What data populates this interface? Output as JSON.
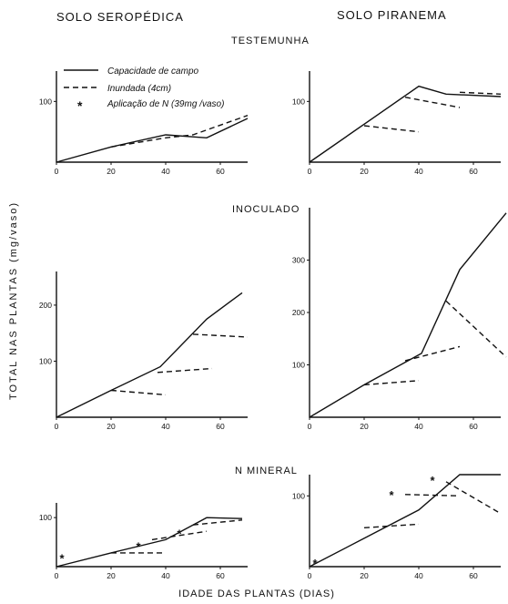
{
  "header": {
    "left": "SOLO SEROPÉDICA",
    "right": "SOLO PIRANEMA"
  },
  "y_axis_label": "TOTAL NAS PLANTAS (mg/vaso)",
  "x_axis_label": "IDADE DAS PLANTAS (DIAS)",
  "legend": {
    "solid": "Capacidade de campo",
    "dashed": "Inundada (4cm)",
    "star": "Aplicação de N (39mg /vaso)",
    "star_symbol": "*"
  },
  "sections": [
    "TESTEMUNHA",
    "INOCULADO",
    "N MINERAL"
  ],
  "colors": {
    "ink": "#111111",
    "background": "#ffffff"
  },
  "chart_data": [
    {
      "type": "line",
      "soil": "SOLO SEROPÉDICA",
      "treatment": "TESTEMUNHA",
      "xlim": [
        0,
        70
      ],
      "ylim": [
        0,
        150
      ],
      "xticks": [
        0,
        20,
        40,
        60
      ],
      "yticks": [
        100
      ],
      "series": [
        {
          "name": "Capacidade de campo",
          "style": "solid",
          "points": [
            [
              0,
              0
            ],
            [
              20,
              25
            ],
            [
              40,
              45
            ],
            [
              55,
              40
            ],
            [
              70,
              72
            ]
          ]
        },
        {
          "name": "Inundada (4cm)",
          "style": "dashed",
          "points": [
            [
              20,
              25
            ],
            [
              40,
              40
            ],
            [
              50,
              45
            ],
            [
              70,
              77
            ]
          ]
        }
      ],
      "markers": []
    },
    {
      "type": "line",
      "soil": "SOLO PIRANEMA",
      "treatment": "TESTEMUNHA",
      "xlim": [
        0,
        70
      ],
      "ylim": [
        0,
        150
      ],
      "xticks": [
        0,
        20,
        40,
        60
      ],
      "yticks": [
        100
      ],
      "series": [
        {
          "name": "Capacidade de campo",
          "style": "solid",
          "points": [
            [
              0,
              0
            ],
            [
              40,
              125
            ],
            [
              50,
              112
            ],
            [
              70,
              108
            ]
          ]
        },
        {
          "name": "Inundada (4cm)",
          "style": "dashed",
          "points": [
            [
              20,
              60
            ],
            [
              40,
              50
            ]
          ]
        },
        {
          "name": "Inundada (4cm)",
          "style": "dashed",
          "points": [
            [
              35,
              107
            ],
            [
              55,
              90
            ]
          ]
        },
        {
          "name": "Inundada (4cm)",
          "style": "dashed",
          "points": [
            [
              55,
              115
            ],
            [
              70,
              112
            ]
          ]
        }
      ],
      "markers": []
    },
    {
      "type": "line",
      "soil": "SOLO SEROPÉDICA",
      "treatment": "INOCULADO",
      "xlim": [
        0,
        70
      ],
      "ylim": [
        0,
        260
      ],
      "xticks": [
        0,
        20,
        40,
        60
      ],
      "yticks": [
        100,
        200
      ],
      "series": [
        {
          "name": "Capacidade de campo",
          "style": "solid",
          "points": [
            [
              0,
              0
            ],
            [
              20,
              48
            ],
            [
              38,
              90
            ],
            [
              55,
              175
            ],
            [
              68,
              222
            ]
          ]
        },
        {
          "name": "Inundada (4cm)",
          "style": "dashed",
          "points": [
            [
              20,
              48
            ],
            [
              40,
              40
            ]
          ]
        },
        {
          "name": "Inundada (4cm)",
          "style": "dashed",
          "points": [
            [
              37,
              80
            ],
            [
              57,
              87
            ]
          ]
        },
        {
          "name": "Inundada (4cm)",
          "style": "dashed",
          "points": [
            [
              50,
              148
            ],
            [
              70,
              143
            ]
          ]
        }
      ],
      "markers": []
    },
    {
      "type": "line",
      "soil": "SOLO PIRANEMA",
      "treatment": "INOCULADO",
      "xlim": [
        0,
        70
      ],
      "ylim": [
        0,
        400
      ],
      "xticks": [
        0,
        20,
        40,
        60
      ],
      "yticks": [
        100,
        200,
        300
      ],
      "series": [
        {
          "name": "Capacidade de campo",
          "style": "solid",
          "points": [
            [
              0,
              0
            ],
            [
              20,
              62
            ],
            [
              41,
              122
            ],
            [
              55,
              282
            ],
            [
              72,
              390
            ]
          ]
        },
        {
          "name": "Inundada (4cm)",
          "style": "dashed",
          "points": [
            [
              20,
              62
            ],
            [
              40,
              70
            ]
          ]
        },
        {
          "name": "Inundada (4cm)",
          "style": "dashed",
          "points": [
            [
              35,
              108
            ],
            [
              55,
              135
            ]
          ]
        },
        {
          "name": "Inundada (4cm)",
          "style": "dashed",
          "points": [
            [
              50,
              222
            ],
            [
              72,
              115
            ]
          ]
        }
      ],
      "markers": []
    },
    {
      "type": "line",
      "soil": "SOLO SEROPÉDICA",
      "treatment": "N MINERAL",
      "xlim": [
        0,
        70
      ],
      "ylim": [
        0,
        130
      ],
      "xticks": [
        0,
        20,
        40,
        60
      ],
      "yticks": [
        100
      ],
      "series": [
        {
          "name": "Capacidade de campo",
          "style": "solid",
          "points": [
            [
              0,
              0
            ],
            [
              20,
              28
            ],
            [
              40,
              55
            ],
            [
              55,
              100
            ],
            [
              68,
              98
            ]
          ]
        },
        {
          "name": "Inundada (4cm)",
          "style": "dashed",
          "points": [
            [
              20,
              28
            ],
            [
              40,
              28
            ]
          ]
        },
        {
          "name": "Inundada (4cm)",
          "style": "dashed",
          "points": [
            [
              35,
              55
            ],
            [
              55,
              72
            ]
          ]
        },
        {
          "name": "Inundada (4cm)",
          "style": "dashed",
          "points": [
            [
              50,
              85
            ],
            [
              68,
              95
            ]
          ]
        }
      ],
      "markers": [
        [
          2,
          18
        ],
        [
          30,
          42
        ],
        [
          45,
          68
        ]
      ]
    },
    {
      "type": "line",
      "soil": "SOLO PIRANEMA",
      "treatment": "N MINERAL",
      "xlim": [
        0,
        70
      ],
      "ylim": [
        0,
        130
      ],
      "xticks": [
        0,
        20,
        40,
        60
      ],
      "yticks": [
        100
      ],
      "series": [
        {
          "name": "Capacidade de campo",
          "style": "solid",
          "points": [
            [
              0,
              0
            ],
            [
              20,
              40
            ],
            [
              40,
              80
            ],
            [
              55,
              130
            ],
            [
              70,
              130
            ]
          ]
        },
        {
          "name": "Inundada (4cm)",
          "style": "dashed",
          "points": [
            [
              20,
              55
            ],
            [
              40,
              60
            ]
          ]
        },
        {
          "name": "Inundada (4cm)",
          "style": "dashed",
          "points": [
            [
              35,
              102
            ],
            [
              55,
              100
            ]
          ]
        },
        {
          "name": "Inundada (4cm)",
          "style": "dashed",
          "points": [
            [
              50,
              120
            ],
            [
              70,
              75
            ]
          ]
        }
      ],
      "markers": [
        [
          2,
          5
        ],
        [
          30,
          102
        ],
        [
          45,
          122
        ]
      ]
    }
  ]
}
